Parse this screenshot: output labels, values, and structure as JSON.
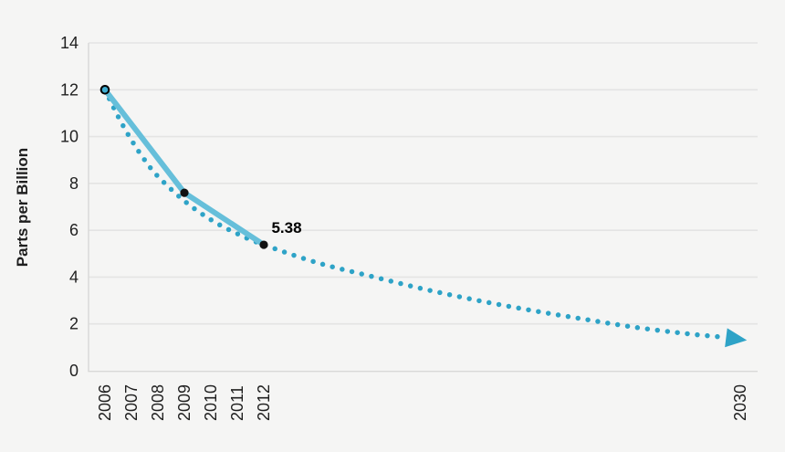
{
  "chart_data": {
    "type": "line",
    "title": "",
    "xlabel": "",
    "ylabel": "Parts per Billion",
    "ylim": [
      0,
      14
    ],
    "yticks": [
      0,
      2,
      4,
      6,
      8,
      10,
      12,
      14
    ],
    "xticks": [
      "2006",
      "2007",
      "2008",
      "2009",
      "2010",
      "2011",
      "2012",
      "2030"
    ],
    "xtick_years": [
      2006,
      2007,
      2008,
      2009,
      2010,
      2011,
      2012,
      2030
    ],
    "grid": true,
    "legend": "none",
    "series": [
      {
        "name": "measured-line",
        "style": "solid",
        "color": "#66bfda",
        "line_width": 6,
        "points": [
          [
            2006,
            12
          ],
          [
            2009,
            7.6
          ],
          [
            2012,
            5.38
          ]
        ]
      },
      {
        "name": "projected-trend",
        "style": "dotted",
        "color": "#2ea3c7",
        "dot_size": 5.5,
        "dot_spacing": 11,
        "arrow_end": true,
        "arrow_tip": [
          2030.25,
          1.3
        ],
        "points": [
          [
            2006,
            12
          ],
          [
            2006.5,
            10.85
          ],
          [
            2007,
            9.85
          ],
          [
            2007.5,
            9.0
          ],
          [
            2008,
            8.3
          ],
          [
            2009,
            7.25
          ],
          [
            2010,
            6.45
          ],
          [
            2011,
            5.85
          ],
          [
            2012,
            5.38
          ],
          [
            2014,
            4.62
          ],
          [
            2016,
            4.05
          ],
          [
            2018,
            3.5
          ],
          [
            2020,
            3.02
          ],
          [
            2022,
            2.6
          ],
          [
            2024,
            2.22
          ],
          [
            2026,
            1.86
          ],
          [
            2028,
            1.58
          ],
          [
            2029.2,
            1.45
          ]
        ]
      }
    ],
    "markers": [
      {
        "x": 2006,
        "y": 12,
        "fill": "#3fadd1",
        "stroke": "#000000",
        "r": 4.3,
        "stroke_width": 2
      },
      {
        "x": 2009,
        "y": 7.6,
        "fill": "#111111",
        "stroke": "none",
        "r": 4.6,
        "stroke_width": 0
      },
      {
        "x": 2012,
        "y": 5.38,
        "fill": "#111111",
        "stroke": "none",
        "r": 4.6,
        "stroke_width": 0
      }
    ],
    "annotation": {
      "text": "5.38",
      "x": 2012,
      "y": 5.38,
      "dx": 25,
      "dy": -13
    },
    "colors": {
      "background": "#f5f5f4",
      "grid": "#e4e4e3",
      "axis": "#d8d8d7",
      "text": "#1f1f1f"
    }
  }
}
